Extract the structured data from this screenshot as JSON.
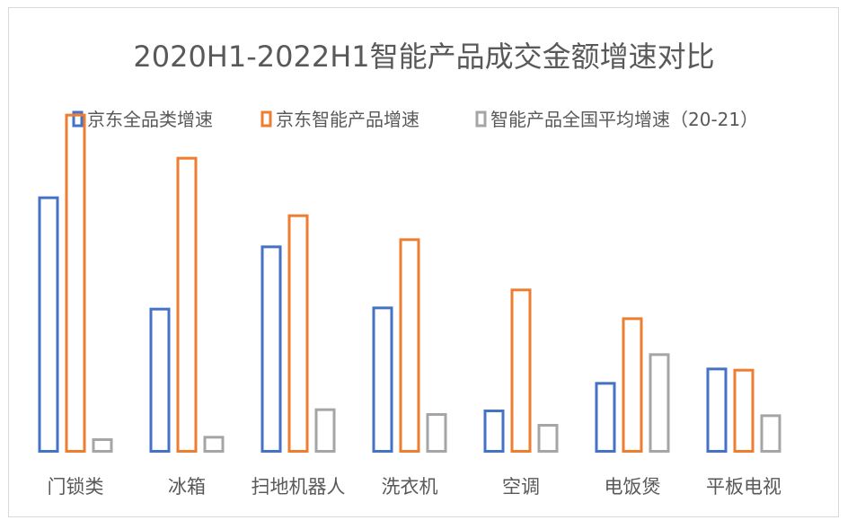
{
  "chart_data": {
    "type": "bar",
    "title": "2020H1-2022H1智能产品成交金额增速对比",
    "categories": [
      "门锁类",
      "冰箱",
      "扫地机器人",
      "洗衣机",
      "空调",
      "电饭煲",
      "平板电视"
    ],
    "series": [
      {
        "name": "京东全品类增速",
        "color": "#4472c4",
        "values": [
          214,
          121,
          173,
          122,
          36,
          59,
          71
        ]
      },
      {
        "name": "京东智能产品增速",
        "color": "#ed7d31",
        "values": [
          283,
          247,
          199,
          179,
          137,
          113,
          70
        ]
      },
      {
        "name": "智能产品全国平均增速（20-21）",
        "color": "#a5a5a5",
        "values": [
          12,
          14,
          37,
          33,
          24,
          83,
          32
        ]
      }
    ],
    "ylim": [
      0,
      300
    ],
    "grid": false,
    "legend_position": "top"
  }
}
